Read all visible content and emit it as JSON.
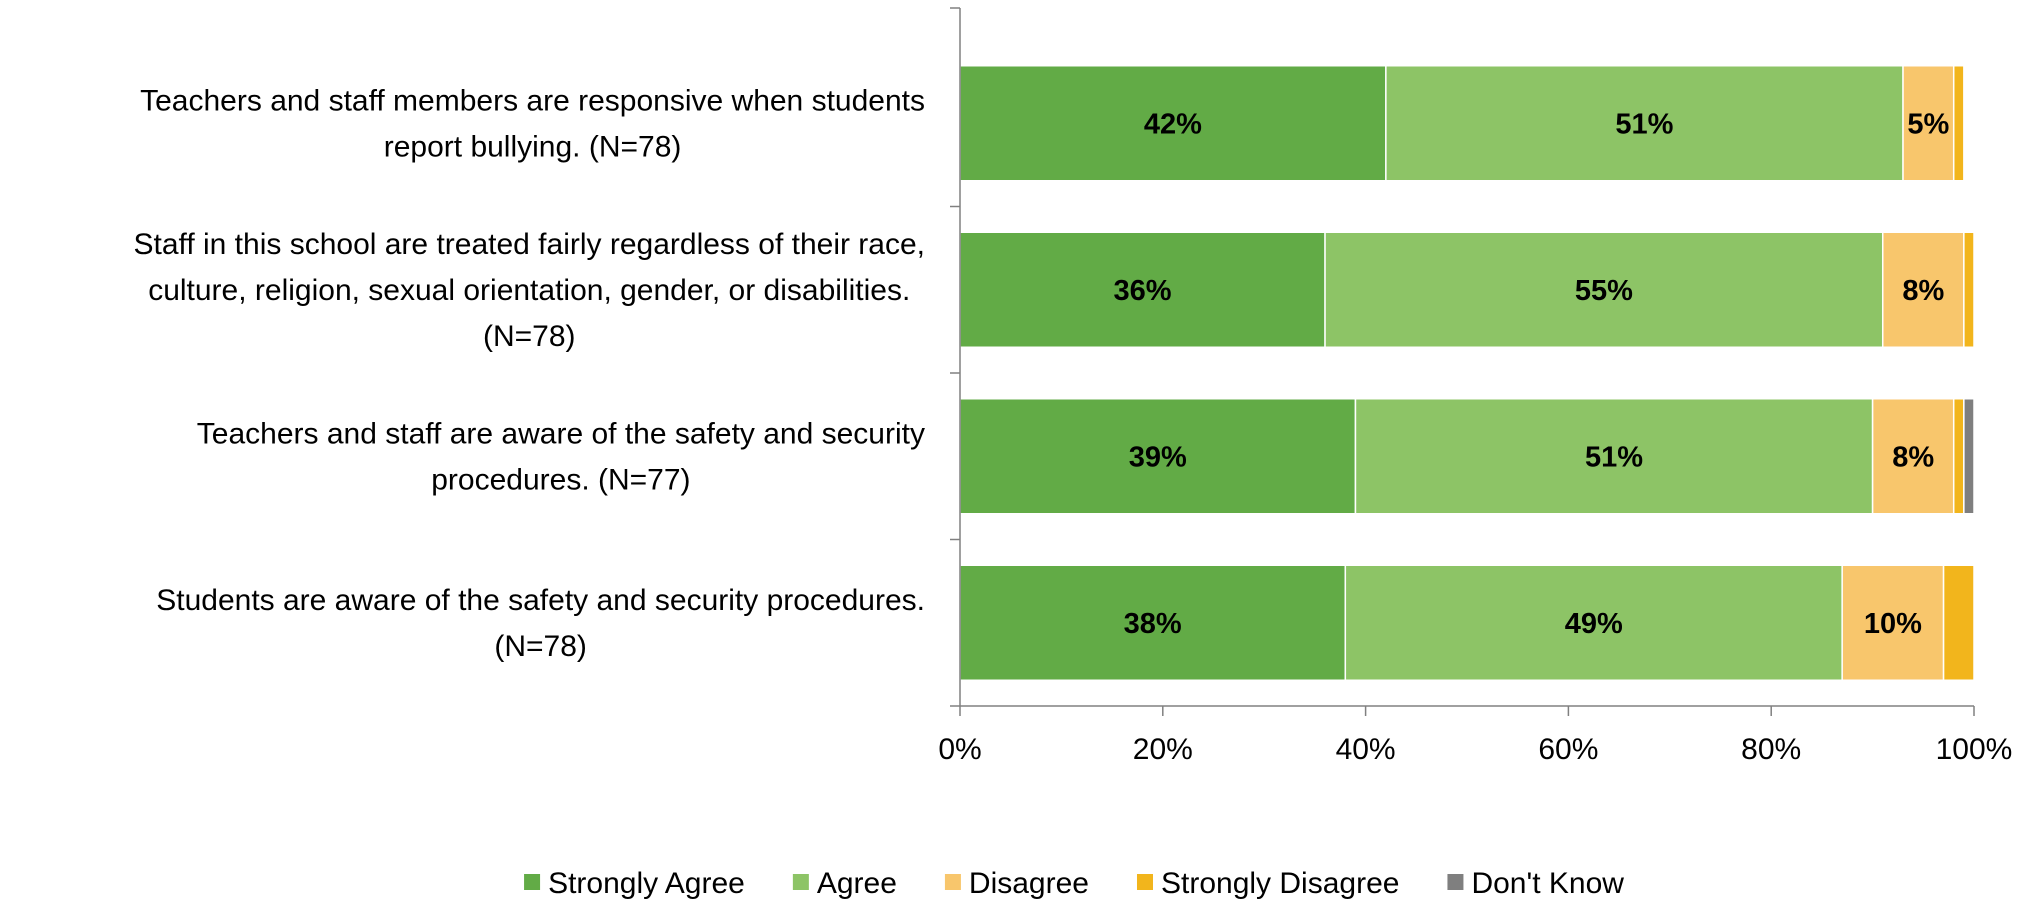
{
  "chart_data": {
    "type": "bar",
    "orientation": "horizontal",
    "stacked": true,
    "percent_stacked": true,
    "categories": [
      [
        "Teachers and staff members are responsive when students",
        "report bullying. (N=78)"
      ],
      [
        "Staff in this school are treated fairly regardless of their race,",
        "culture, religion, sexual orientation, gender, or disabilities.",
        "(N=78)"
      ],
      [
        "Teachers and staff are aware of the safety and security",
        "procedures. (N=77)"
      ],
      [
        "Students are aware of the safety and security procedures.",
        "(N=78)"
      ]
    ],
    "series": [
      {
        "name": "Strongly Agree",
        "color": "#62ab46",
        "values": [
          42,
          36,
          39,
          38
        ],
        "labels": [
          "42%",
          "36%",
          "39%",
          "38%"
        ]
      },
      {
        "name": "Agree",
        "color": "#8dc466",
        "values": [
          51,
          55,
          51,
          49
        ],
        "labels": [
          "51%",
          "55%",
          "51%",
          "49%"
        ]
      },
      {
        "name": "Disagree",
        "color": "#f8c66c",
        "values": [
          5,
          8,
          8,
          10
        ],
        "labels": [
          "5%",
          "8%",
          "8%",
          "10%"
        ]
      },
      {
        "name": "Strongly Disagree",
        "color": "#f2b51c",
        "values": [
          1,
          1,
          1,
          3
        ],
        "labels": [
          "",
          "",
          "",
          ""
        ]
      },
      {
        "name": "Don't Know",
        "color": "#7f7f7f",
        "values": [
          0,
          0,
          1,
          0
        ],
        "labels": [
          "",
          "",
          "",
          ""
        ]
      }
    ],
    "x_ticks": [
      "0%",
      "20%",
      "40%",
      "60%",
      "80%",
      "100%"
    ],
    "xlim": [
      0,
      100
    ],
    "grid": false,
    "legend": "bottom"
  }
}
